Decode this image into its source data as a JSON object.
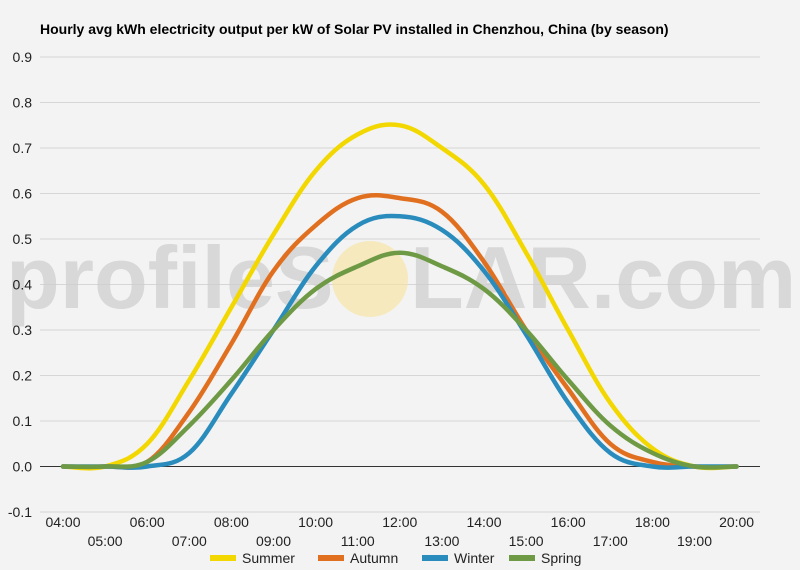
{
  "watermark": {
    "text_left": "profileS",
    "text_right": "LAR.com",
    "sun_color": "#f8e39a"
  },
  "chart_data": {
    "type": "line",
    "title": "Hourly avg kWh electricity output per kW of Solar PV installed in Chenzhou, China (by season)",
    "xlabel": "",
    "ylabel": "",
    "x": [
      "04:00",
      "05:00",
      "06:00",
      "07:00",
      "08:00",
      "09:00",
      "10:00",
      "11:00",
      "12:00",
      "13:00",
      "14:00",
      "15:00",
      "16:00",
      "17:00",
      "18:00",
      "19:00",
      "20:00"
    ],
    "ylim": [
      -0.1,
      0.9
    ],
    "yticks": [
      "-0.1",
      "0.0",
      "0.1",
      "0.2",
      "0.3",
      "0.4",
      "0.5",
      "0.6",
      "0.7",
      "0.8",
      "0.9"
    ],
    "grid": true,
    "legend_position": "bottom",
    "series": [
      {
        "name": "Summer",
        "color": "#f2d800",
        "values": [
          0.0,
          0.0,
          0.05,
          0.19,
          0.35,
          0.51,
          0.65,
          0.73,
          0.75,
          0.7,
          0.62,
          0.47,
          0.3,
          0.14,
          0.04,
          0.0,
          0.0
        ]
      },
      {
        "name": "Autumn",
        "color": "#e07020",
        "values": [
          0.0,
          0.0,
          0.01,
          0.12,
          0.27,
          0.43,
          0.53,
          0.59,
          0.59,
          0.56,
          0.45,
          0.3,
          0.17,
          0.05,
          0.01,
          0.0,
          0.0
        ]
      },
      {
        "name": "Winter",
        "color": "#2a8cbc",
        "values": [
          0.0,
          0.0,
          0.0,
          0.03,
          0.16,
          0.3,
          0.44,
          0.53,
          0.55,
          0.52,
          0.43,
          0.29,
          0.14,
          0.03,
          0.0,
          0.0,
          0.0
        ]
      },
      {
        "name": "Spring",
        "color": "#6f9a45",
        "values": [
          0.0,
          0.0,
          0.01,
          0.09,
          0.19,
          0.3,
          0.39,
          0.44,
          0.47,
          0.44,
          0.39,
          0.3,
          0.19,
          0.09,
          0.03,
          0.0,
          0.0
        ]
      }
    ]
  }
}
